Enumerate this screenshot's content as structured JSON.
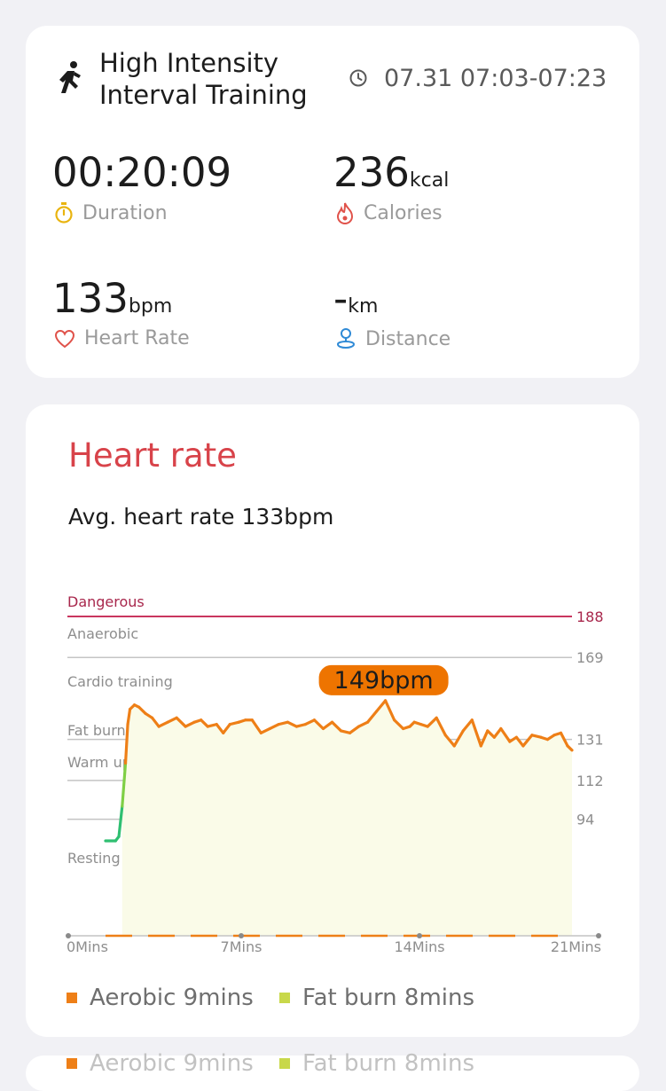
{
  "summary": {
    "activity_title_line1": "High Intensity",
    "activity_title_line2": "Interval Training",
    "time_range": "07.31 07:03-07:23",
    "duration": {
      "value": "00:20:09",
      "label": "Duration"
    },
    "calories": {
      "value": "236",
      "unit": "kcal",
      "label": "Calories"
    },
    "heart_rate": {
      "value": "133",
      "unit": "bpm",
      "label": "Heart Rate"
    },
    "distance": {
      "value": "-",
      "unit": "km",
      "label": "Distance"
    }
  },
  "heart_rate_card": {
    "title": "Heart rate",
    "avg_text": "Avg. heart rate 133bpm",
    "tooltip": "149bpm"
  },
  "chart_data": {
    "type": "line",
    "x_unit": "Mins",
    "xlim": [
      0,
      21
    ],
    "ylim": [
      40,
      188
    ],
    "x_ticks": [
      "0Mins",
      "7Mins",
      "14Mins",
      "21Mins"
    ],
    "zones": [
      {
        "name": "Dangerous",
        "threshold": 188,
        "color": "#c9365f"
      },
      {
        "name": "Anaerobic",
        "threshold": 169,
        "color": "#bdbdbd"
      },
      {
        "name": "Cardio training",
        "threshold": null,
        "color": "#bdbdbd"
      },
      {
        "name": "Fat burning",
        "threshold": 131,
        "color": "#bdbdbd"
      },
      {
        "name": "Warm up",
        "threshold": 112,
        "color": "#bdbdbd"
      },
      {
        "name": "Resting",
        "threshold": 94,
        "color": "#bdbdbd"
      }
    ],
    "right_ticks": [
      "188",
      "169",
      "131",
      "112",
      "94"
    ],
    "series": [
      {
        "x": [
          0,
          0.45,
          0.6,
          0.75,
          0.9,
          1.0,
          1.1,
          1.3,
          1.5,
          1.8,
          2.1,
          2.4,
          2.8,
          3.2,
          3.6,
          4.0,
          4.3,
          4.6,
          5.0,
          5.3,
          5.6,
          6.0,
          6.3,
          6.6,
          7.0,
          7.4,
          7.8,
          8.2,
          8.6,
          9.0,
          9.4,
          9.8,
          10.2,
          10.6,
          11.0,
          11.4,
          11.8,
          12.2,
          12.6,
          13.0,
          13.4,
          13.7,
          13.9,
          14.2,
          14.5,
          14.9,
          15.3,
          15.7,
          16.1,
          16.5,
          16.9,
          17.2,
          17.5,
          17.8,
          18.2,
          18.5,
          18.8,
          19.2,
          19.6,
          19.9,
          20.2,
          20.5,
          20.8,
          21.0
        ],
        "y": [
          84,
          84,
          86,
          100,
          120,
          138,
          145,
          147,
          146,
          143,
          141,
          137,
          139,
          141,
          137,
          139,
          140,
          137,
          138,
          134,
          138,
          139,
          140,
          140,
          134,
          136,
          138,
          139,
          137,
          138,
          140,
          136,
          139,
          135,
          134,
          137,
          139,
          144,
          149,
          140,
          136,
          137,
          139,
          138,
          137,
          141,
          133,
          128,
          135,
          140,
          128,
          135,
          132,
          136,
          130,
          132,
          128,
          133,
          132,
          131,
          133,
          134,
          128,
          126
        ],
        "color_zones": [
          {
            "below": 100,
            "color": "#2fbf71"
          },
          {
            "below": 112,
            "color": "#7fcf45"
          },
          {
            "below": 999,
            "color": "#ee7f17"
          }
        ]
      }
    ],
    "peak": {
      "x": 12.6,
      "y": 149
    },
    "legend": [
      {
        "label": "Aerobic 9mins",
        "color": "#ee7f17"
      },
      {
        "label": "Fat burn 8mins",
        "color": "#c8d84a"
      }
    ]
  }
}
